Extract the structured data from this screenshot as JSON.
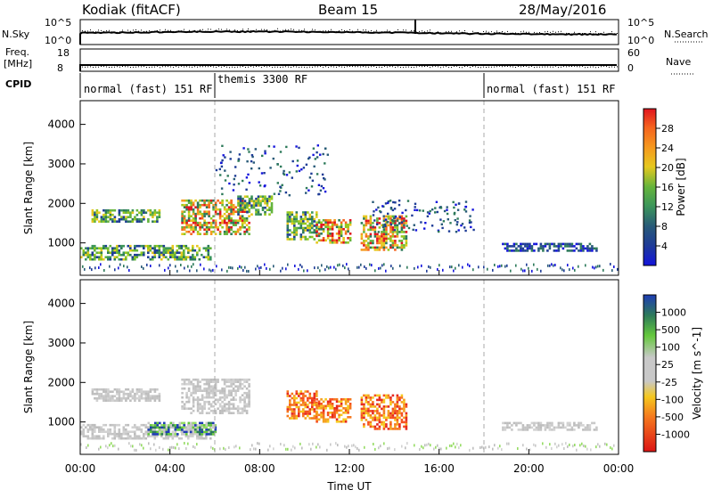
{
  "header": {
    "station": "Kodiak (fitACF)",
    "beam": "Beam 15",
    "date": "28/May/2016"
  },
  "top_panels": {
    "nsky": {
      "label": "N.Sky",
      "ticks": [
        "10^5",
        "10^0"
      ]
    },
    "nsearch": {
      "label": "N.Search",
      "ticks": [
        "10^5",
        "10^0"
      ]
    },
    "freq": {
      "label_line1": "Freq.",
      "label_line2": "[MHz]",
      "ticks": [
        "18",
        "8"
      ]
    },
    "nave": {
      "label": "Nave",
      "ticks": [
        "60",
        "0"
      ]
    },
    "cpid": {
      "label": "CPID",
      "segments": [
        {
          "label": "normal (fast) 151 RF",
          "start_hour": 0,
          "end_hour": 6
        },
        {
          "label": "themis 3300 RF",
          "start_hour": 6,
          "end_hour": 18
        },
        {
          "label": "normal (fast) 151 RF",
          "start_hour": 18,
          "end_hour": 24
        }
      ]
    }
  },
  "x_axis": {
    "label": "Time UT",
    "ticks": [
      "00:00",
      "04:00",
      "08:00",
      "12:00",
      "16:00",
      "20:00",
      "00:00"
    ]
  },
  "chart_data": [
    {
      "type": "heatmap",
      "panel": "power",
      "ylabel": "Slant Range [km]",
      "yticks": [
        1000,
        2000,
        3000,
        4000
      ],
      "ylim": [
        180,
        4600
      ],
      "xlim_hours": [
        0,
        24
      ],
      "colorbar": {
        "label": "Power [dB]",
        "ticks": [
          "28",
          "24",
          "20",
          "16",
          "12",
          "8",
          "4"
        ],
        "colors": [
          "#e0141e",
          "#e8321e",
          "#f5641e",
          "#f59a1e",
          "#e6c81e",
          "#c8d21e",
          "#96c81e",
          "#64b43c",
          "#3c965a",
          "#2d7a5a",
          "#285a78",
          "#1e3c96",
          "#1414dc"
        ]
      },
      "regions": [
        {
          "t0": 0.0,
          "t1": 5.8,
          "r0": 600,
          "r1": 950,
          "level": "mid"
        },
        {
          "t0": 0.5,
          "t1": 3.5,
          "r0": 1550,
          "r1": 1850,
          "level": "mid"
        },
        {
          "t0": 4.5,
          "t1": 7.5,
          "r0": 1200,
          "r1": 2100,
          "level": "high"
        },
        {
          "t0": 7.0,
          "t1": 8.5,
          "r0": 1700,
          "r1": 2200,
          "level": "mid"
        },
        {
          "t0": 9.2,
          "t1": 10.5,
          "r0": 1100,
          "r1": 1800,
          "level": "mid"
        },
        {
          "t0": 10.5,
          "t1": 12.0,
          "r0": 1000,
          "r1": 1600,
          "level": "high"
        },
        {
          "t0": 12.5,
          "t1": 14.5,
          "r0": 800,
          "r1": 1700,
          "level": "high"
        },
        {
          "t0": 18.8,
          "t1": 23.0,
          "r0": 800,
          "r1": 1000,
          "level": "low"
        }
      ],
      "scatter": [
        {
          "t0": 6.0,
          "t1": 11.0,
          "r0": 2200,
          "r1": 3500
        },
        {
          "t0": 13.0,
          "t1": 17.5,
          "r0": 1300,
          "r1": 2100
        }
      ]
    },
    {
      "type": "heatmap",
      "panel": "velocity",
      "ylabel": "Slant Range [km]",
      "yticks": [
        1000,
        2000,
        3000,
        4000
      ],
      "ylim": [
        180,
        4600
      ],
      "xlim_hours": [
        0,
        24
      ],
      "colorbar": {
        "label": "Velocity [m s^-1]",
        "ticks": [
          "1000",
          "500",
          "100",
          "25",
          "-25",
          "-100",
          "-500",
          "-1000"
        ],
        "colors": [
          "#1e3cb4",
          "#2864c8",
          "#2d7a5a",
          "#3c965a",
          "#64c83c",
          "#96dc64",
          "#c8c8c8",
          "#c8c8c8",
          "#f5c81e",
          "#f5a01e",
          "#f5781e",
          "#f5501e",
          "#e6281e",
          "#dc1414"
        ]
      },
      "regions": [
        {
          "t0": 0.0,
          "t1": 5.8,
          "r0": 600,
          "r1": 950,
          "level": "grey"
        },
        {
          "t0": 0.5,
          "t1": 3.5,
          "r0": 1550,
          "r1": 1850,
          "level": "grey"
        },
        {
          "t0": 4.5,
          "t1": 7.5,
          "r0": 1200,
          "r1": 2100,
          "level": "grey"
        },
        {
          "t0": 3.0,
          "t1": 6.0,
          "r0": 700,
          "r1": 1000,
          "level": "positive"
        },
        {
          "t0": 9.2,
          "t1": 10.5,
          "r0": 1100,
          "r1": 1800,
          "level": "negative"
        },
        {
          "t0": 10.5,
          "t1": 12.0,
          "r0": 1000,
          "r1": 1600,
          "level": "negative"
        },
        {
          "t0": 12.5,
          "t1": 14.5,
          "r0": 800,
          "r1": 1700,
          "level": "negative"
        },
        {
          "t0": 18.8,
          "t1": 23.0,
          "r0": 800,
          "r1": 1000,
          "level": "grey"
        }
      ]
    }
  ]
}
